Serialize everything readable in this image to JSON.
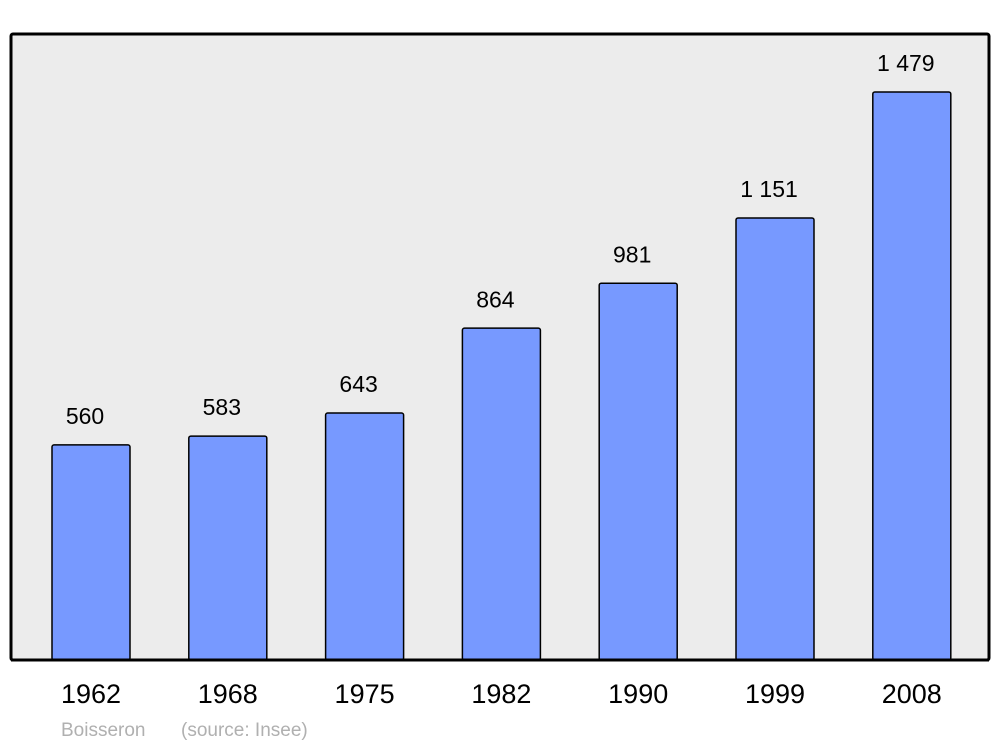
{
  "chart_data": {
    "type": "bar",
    "categories": [
      "1962",
      "1968",
      "1975",
      "1982",
      "1990",
      "1999",
      "2008"
    ],
    "values": [
      560,
      583,
      643,
      864,
      981,
      1151,
      1479
    ],
    "value_labels": [
      "560",
      "583",
      "643",
      "864",
      "981",
      "1 151",
      "1 479"
    ],
    "color": "#7799ff",
    "ylim": [
      0,
      1630
    ],
    "caption": "Boisseron",
    "source": "(source: Insee)"
  }
}
